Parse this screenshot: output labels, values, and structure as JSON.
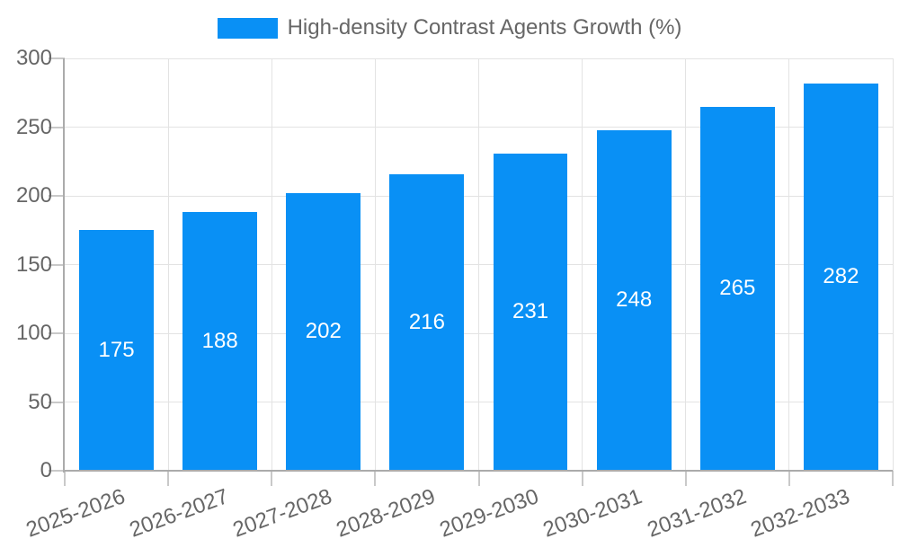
{
  "chart_data": {
    "type": "bar",
    "title": "",
    "legend": {
      "position": "top-center",
      "label": "High-density Contrast Agents Growth (%)"
    },
    "categories": [
      "2025-2026",
      "2026-2027",
      "2027-2028",
      "2028-2029",
      "2029-2030",
      "2030-2031",
      "2031-2032",
      "2032-2033"
    ],
    "series": [
      {
        "name": "High-density Contrast Agents Growth (%)",
        "values": [
          175,
          188,
          202,
          216,
          231,
          248,
          265,
          282
        ]
      }
    ],
    "xlabel": "",
    "ylabel": "",
    "ylim": [
      0,
      300
    ],
    "yticks": [
      0,
      50,
      100,
      150,
      200,
      250,
      300
    ],
    "grid": true,
    "show_value_labels": true,
    "x_tick_rotation_deg": -20,
    "colors": {
      "bar": "#0990f5",
      "value_label": "#ffffff",
      "tick_label": "#666666",
      "legend_label": "#666666",
      "grid_line": "#e3e3e3",
      "tick_mark": "#c9c9c9",
      "axis_line": "#ababab",
      "background": "#ffffff"
    }
  }
}
